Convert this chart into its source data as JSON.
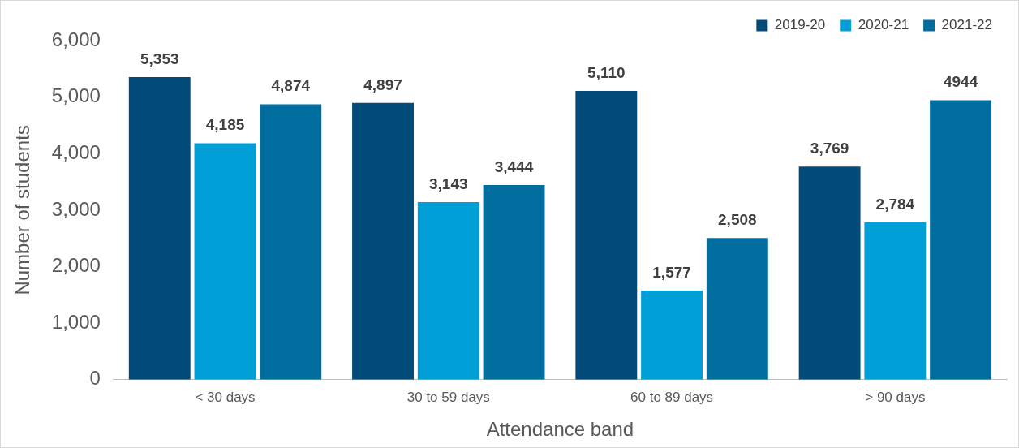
{
  "chart_data": {
    "type": "bar",
    "xlabel": "Attendance band",
    "ylabel": "Number of students",
    "categories": [
      "< 30 days",
      "30 to 59 days",
      "60 to 89 days",
      "> 90 days"
    ],
    "series": [
      {
        "name": "2019-20",
        "color": "#004b7a",
        "values": [
          5353,
          4897,
          5110,
          3769
        ],
        "value_labels": [
          "5,353",
          "4,897",
          "5,110",
          "3,769"
        ]
      },
      {
        "name": "2020-21",
        "color": "#009fd8",
        "values": [
          4185,
          3143,
          1577,
          2784
        ],
        "value_labels": [
          "4,185",
          "3,143",
          "1,577",
          "2,784"
        ]
      },
      {
        "name": "2021-22",
        "color": "#006d9f",
        "values": [
          4874,
          3444,
          2508,
          4944
        ],
        "value_labels": [
          "4,874",
          "3,444",
          "2,508",
          "4944"
        ]
      }
    ],
    "ylim": [
      0,
      6000
    ],
    "yticks": [
      {
        "value": 0,
        "label": "0"
      },
      {
        "value": 1000,
        "label": "1,000"
      },
      {
        "value": 2000,
        "label": "2,000"
      },
      {
        "value": 3000,
        "label": "3,000"
      },
      {
        "value": 4000,
        "label": "4,000"
      },
      {
        "value": 5000,
        "label": "5,000"
      },
      {
        "value": 6000,
        "label": "6,000"
      }
    ],
    "grid": false,
    "legend": "top right"
  }
}
